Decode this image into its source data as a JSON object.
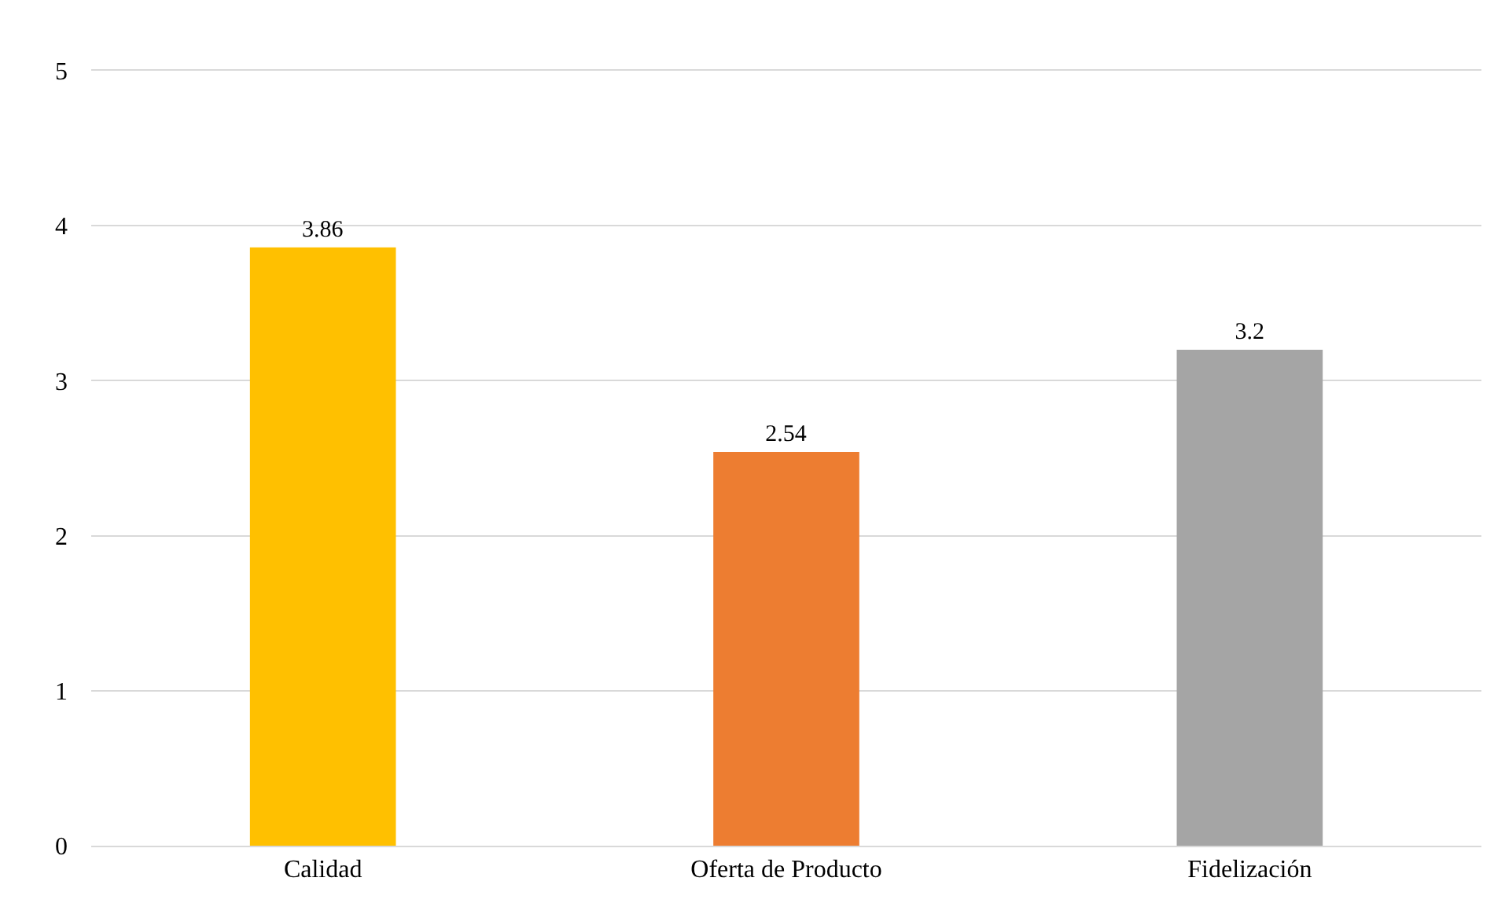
{
  "chart_data": {
    "type": "bar",
    "categories": [
      "Calidad",
      "Oferta de Producto",
      "Fidelización"
    ],
    "values": [
      3.86,
      2.54,
      3.2
    ],
    "colors": [
      "#ffc000",
      "#ed7d31",
      "#a5a5a5"
    ],
    "ylim": [
      0,
      5
    ],
    "yticks": [
      0,
      1,
      2,
      3,
      4,
      5
    ],
    "grid": "y",
    "data_labels": true
  }
}
